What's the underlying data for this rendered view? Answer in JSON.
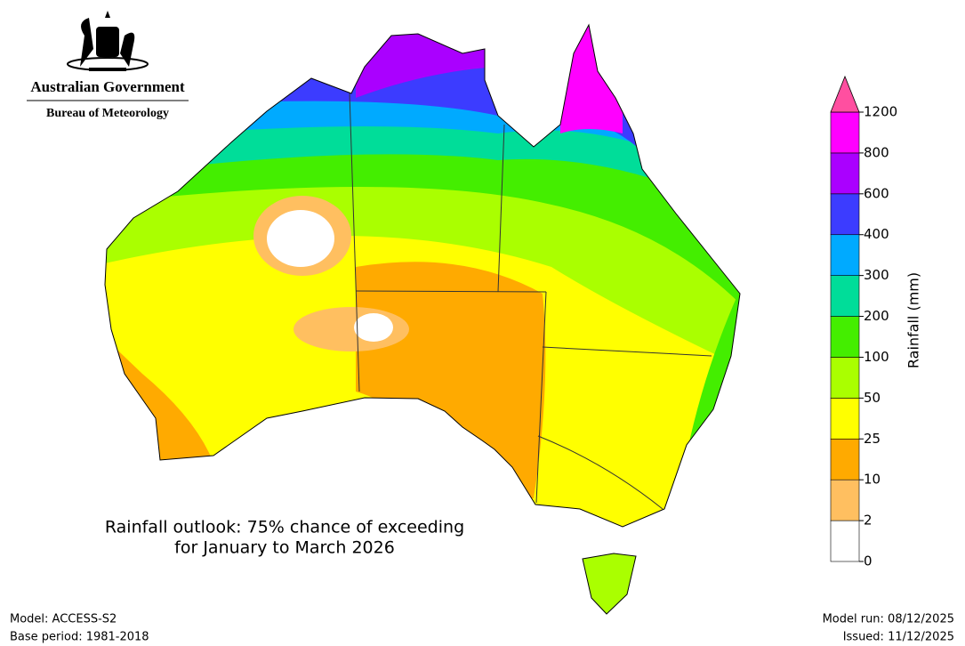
{
  "header": {
    "agency": "Australian Government",
    "bureau": "Bureau of Meteorology"
  },
  "map": {
    "title_line1": "Rainfall outlook: 75% chance of exceeding",
    "title_line2": "for January to March 2026"
  },
  "colorbar": {
    "label": "Rainfall (mm)",
    "ticks": [
      0,
      2,
      10,
      25,
      50,
      100,
      200,
      300,
      400,
      600,
      800,
      1200
    ],
    "colors": [
      "#ffffff",
      "#ffbf60",
      "#ffaa00",
      "#ffff00",
      "#aaff00",
      "#44ee00",
      "#00dd99",
      "#00aaff",
      "#3c3cff",
      "#aa00ff",
      "#ff00ff"
    ],
    "extend_color": "#ff4fa0"
  },
  "footer": {
    "model": "Model: ACCESS-S2",
    "base_period": "Base period: 1981-2018",
    "model_run": "Model run: 08/12/2025",
    "issued": "Issued: 11/12/2025"
  }
}
